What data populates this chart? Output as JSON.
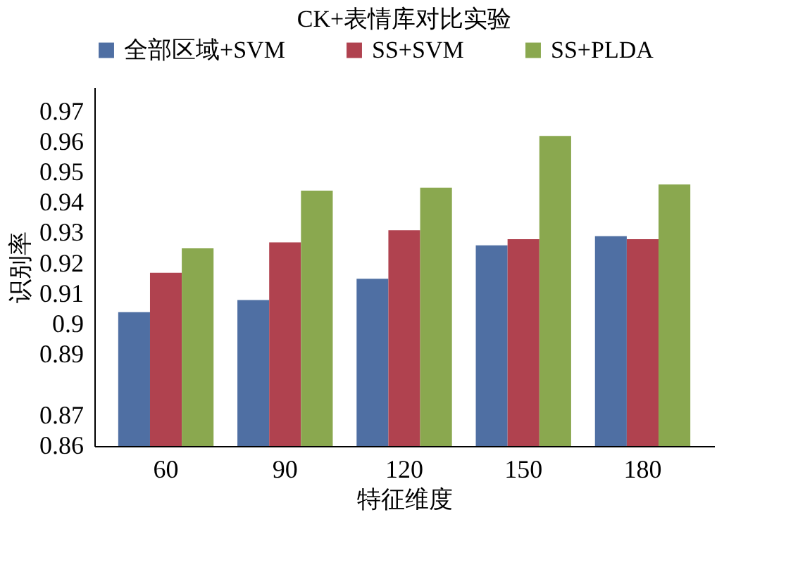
{
  "chart_data": {
    "type": "bar",
    "title": "CK+表情库对比实验",
    "xlabel": "特征维度",
    "ylabel": "识别率",
    "categories": [
      "60",
      "90",
      "120",
      "150",
      "180"
    ],
    "series": [
      {
        "name": "全部区域+SVM",
        "color": "#4f6fa3",
        "values": [
          0.904,
          0.908,
          0.915,
          0.926,
          0.929
        ]
      },
      {
        "name": "SS+SVM",
        "color": "#b0424f",
        "values": [
          0.917,
          0.927,
          0.931,
          0.928,
          0.928
        ]
      },
      {
        "name": "SS+PLDA",
        "color": "#8aa84f",
        "values": [
          0.925,
          0.944,
          0.945,
          0.962,
          0.946
        ]
      }
    ],
    "ylim": [
      0.86,
      0.978
    ],
    "yticks": [
      0.86,
      0.87,
      0.89,
      0.9,
      0.91,
      0.92,
      0.93,
      0.94,
      0.95,
      0.96,
      0.97
    ],
    "grid": false,
    "legend": "top"
  }
}
